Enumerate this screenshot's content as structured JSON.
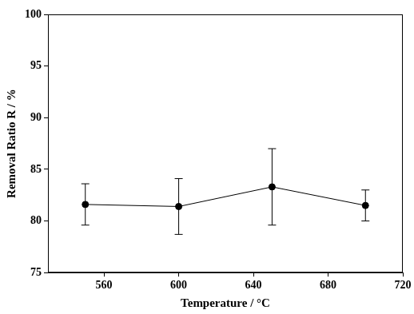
{
  "chart_data": {
    "type": "line",
    "x_label": "Temperature / °C",
    "y_label": "Removal Ratio R / %",
    "x": [
      550,
      600,
      650,
      700
    ],
    "values": [
      81.6,
      81.4,
      83.3,
      81.5
    ],
    "errors": [
      2.0,
      2.7,
      3.7,
      1.5
    ],
    "color": "#000000",
    "marker": "circle",
    "line_style": "solid",
    "xlim": [
      530,
      720
    ],
    "xticks": [
      560,
      600,
      640,
      680,
      720
    ],
    "ylim": [
      75,
      100
    ],
    "yticks": [
      75,
      80,
      85,
      90,
      95,
      100
    ],
    "grid": false
  }
}
